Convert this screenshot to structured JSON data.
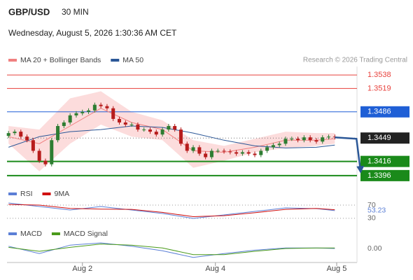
{
  "header": {
    "symbol": "GBP/USD",
    "timeframe": "30 MIN",
    "datetime": "Wednesday, August 5, 2026 1:30:36 AM CET",
    "source": "Research © 2026 Trading Central"
  },
  "chart_data": [
    {
      "type": "candlestick",
      "xlim": [
        -0.25,
        56.6
      ],
      "ylim": [
        1.3385,
        1.355
      ],
      "xticks": [
        {
          "value": 12,
          "label": "Aug 2"
        },
        {
          "value": 33.6,
          "label": "Aug 4"
        },
        {
          "value": 53.3,
          "label": "Aug 5"
        }
      ],
      "up_color": "#2e7d32",
      "down_color": "#b71c1c",
      "open": [
        1.3452,
        1.3456,
        1.3458,
        1.3451,
        1.3446,
        1.3431,
        1.3417,
        1.3412,
        1.3446,
        1.3466,
        1.3471,
        1.3481,
        1.3484,
        1.3486,
        1.3488,
        1.3496,
        1.3494,
        1.3491,
        1.3476,
        1.3471,
        1.3468,
        1.3468,
        1.3461,
        1.3461,
        1.3458,
        1.3454,
        1.3461,
        1.3466,
        1.3461,
        1.3441,
        1.3431,
        1.3436,
        1.3427,
        1.3422,
        1.3431,
        1.3431,
        1.343,
        1.3429,
        1.3427,
        1.3429,
        1.3427,
        1.3425,
        1.3431,
        1.3436,
        1.3439,
        1.3441,
        1.3448,
        1.3448,
        1.3446,
        1.345,
        1.3446,
        1.3444,
        1.345,
        1.3451
      ],
      "high": [
        1.3459,
        1.3461,
        1.3461,
        1.3454,
        1.3449,
        1.3434,
        1.342,
        1.3449,
        1.3469,
        1.3474,
        1.3484,
        1.3487,
        1.3489,
        1.3491,
        1.3499,
        1.3499,
        1.3497,
        1.3494,
        1.3479,
        1.3474,
        1.3471,
        1.3471,
        1.3464,
        1.3464,
        1.3461,
        1.3464,
        1.3469,
        1.3469,
        1.3464,
        1.3444,
        1.3439,
        1.3439,
        1.343,
        1.3434,
        1.3434,
        1.3434,
        1.3433,
        1.3432,
        1.3432,
        1.3432,
        1.343,
        1.3434,
        1.3439,
        1.3442,
        1.3444,
        1.3451,
        1.3451,
        1.3451,
        1.3453,
        1.3453,
        1.3449,
        1.3453,
        1.3454,
        1.3454
      ],
      "low": [
        1.3449,
        1.3453,
        1.3448,
        1.3443,
        1.3428,
        1.3414,
        1.3409,
        1.3409,
        1.3443,
        1.3463,
        1.3468,
        1.3478,
        1.3481,
        1.3483,
        1.3485,
        1.3491,
        1.3488,
        1.3473,
        1.3468,
        1.3465,
        1.3465,
        1.3458,
        1.3458,
        1.3455,
        1.3451,
        1.3451,
        1.3458,
        1.3458,
        1.3438,
        1.3428,
        1.3428,
        1.3424,
        1.3419,
        1.3419,
        1.3428,
        1.3427,
        1.3426,
        1.3424,
        1.3424,
        1.3424,
        1.3422,
        1.3422,
        1.3428,
        1.3433,
        1.3436,
        1.3438,
        1.3445,
        1.3443,
        1.3443,
        1.3443,
        1.3441,
        1.3441,
        1.3447,
        1.3447
      ],
      "close": [
        1.3456,
        1.3458,
        1.3451,
        1.3446,
        1.3431,
        1.3417,
        1.3412,
        1.3446,
        1.3466,
        1.3471,
        1.3481,
        1.3484,
        1.3486,
        1.3488,
        1.3496,
        1.3494,
        1.3491,
        1.3476,
        1.3471,
        1.3468,
        1.3468,
        1.3461,
        1.3461,
        1.3458,
        1.3454,
        1.3461,
        1.3466,
        1.3461,
        1.3441,
        1.3431,
        1.3436,
        1.3427,
        1.3422,
        1.3431,
        1.3431,
        1.343,
        1.3429,
        1.3427,
        1.3429,
        1.3427,
        1.3425,
        1.3431,
        1.3436,
        1.3439,
        1.3441,
        1.3448,
        1.3448,
        1.3446,
        1.345,
        1.3446,
        1.3444,
        1.345,
        1.3451,
        1.345
      ],
      "legend": [
        {
          "name": "MA 20 + Bollinger Bands",
          "color": "#f08080"
        },
        {
          "name": "MA 50",
          "color": "#2b5797"
        }
      ],
      "bands": {
        "color": "#fbd3d3",
        "x": [
          0,
          5,
          10,
          15,
          20,
          25,
          30,
          35,
          40,
          45,
          50,
          53
        ],
        "upper": [
          1.3466,
          1.3461,
          1.3505,
          1.3515,
          1.3486,
          1.3474,
          1.3446,
          1.3438,
          1.3448,
          1.3458,
          1.3456,
          1.3456
        ],
        "lower": [
          1.3441,
          1.3402,
          1.3441,
          1.3468,
          1.3451,
          1.3446,
          1.3407,
          1.3417,
          1.3429,
          1.3435,
          1.3438,
          1.3441
        ]
      },
      "series": [
        {
          "name": "MA 20",
          "color": "#f08080",
          "x": [
            0,
            5,
            10,
            15,
            20,
            25,
            30,
            35,
            40,
            45,
            50,
            53
          ],
          "values": [
            1.3451,
            1.3441,
            1.3466,
            1.3491,
            1.3471,
            1.3461,
            1.3431,
            1.3429,
            1.3436,
            1.3446,
            1.3446,
            1.3448
          ]
        },
        {
          "name": "MA 50",
          "color": "#2b5797",
          "x": [
            0,
            5,
            10,
            15,
            20,
            25,
            30,
            35,
            40,
            45,
            50,
            53
          ],
          "values": [
            1.3436,
            1.3451,
            1.3458,
            1.3461,
            1.3466,
            1.3464,
            1.3456,
            1.3446,
            1.3438,
            1.3435,
            1.3436,
            1.3439
          ]
        }
      ],
      "levels": [
        {
          "value": 1.3538,
          "color": "#e8413c",
          "boxed": false,
          "width": 1,
          "dotted": false
        },
        {
          "value": 1.3519,
          "color": "#e8413c",
          "boxed": false,
          "width": 1,
          "dotted": false
        },
        {
          "value": 1.3486,
          "color": "#1f5fd6",
          "boxed": true,
          "width": 1,
          "dotted": false
        },
        {
          "value": 1.3449,
          "color": "#222222",
          "boxed": true,
          "width": 1,
          "dotted": true
        },
        {
          "value": 1.3416,
          "color": "#1a8a1a",
          "boxed": true,
          "width": 2,
          "dotted": false
        },
        {
          "value": 1.3396,
          "color": "#1a8a1a",
          "boxed": true,
          "width": 2,
          "dotted": false
        }
      ],
      "arrow": {
        "color": "#2b5797",
        "from": [
          53,
          1.345
        ],
        "to": [
          57.2,
          1.3401
        ]
      }
    },
    {
      "type": "line",
      "ylim": [
        17,
        87
      ],
      "yticks": [
        70,
        30
      ],
      "grid": true,
      "x": [
        0,
        5,
        10,
        15,
        20,
        25,
        30,
        35,
        40,
        45,
        50,
        53
      ],
      "series": [
        {
          "name": "RSI",
          "color": "#5b7fd6",
          "values": [
            76.4,
            65.8,
            55.2,
            65.8,
            55.2,
            44.6,
            29.7,
            40.3,
            50.9,
            61.5,
            59.4,
            53.23
          ]
        },
        {
          "name": "9MA",
          "color": "#d01010",
          "values": [
            72,
            70,
            60,
            58,
            57,
            48,
            35,
            38,
            47,
            57,
            60,
            56
          ]
        }
      ],
      "last_value_series": 0
    },
    {
      "type": "line",
      "ylim": [
        -0.0025,
        0.0025
      ],
      "yticks": [
        {
          "value": 0,
          "label": "0.00"
        }
      ],
      "grid": false,
      "x": [
        0,
        5,
        10,
        15,
        20,
        25,
        30,
        35,
        40,
        45,
        50,
        53
      ],
      "series": [
        {
          "name": "MACD",
          "color": "#5b7fd6",
          "values": [
            0.0004,
            -0.0009,
            0.0006,
            0.001,
            0.0004,
            -0.0004,
            -0.0016,
            -0.0009,
            -0.0003,
            0.0001,
            0.0001,
            0
          ]
        },
        {
          "name": "MACD Signal",
          "color": "#4a9a1a",
          "values": [
            0.0002,
            -0.0005,
            0.0002,
            0.0008,
            0.0006,
            0.0001,
            -0.0011,
            -0.0011,
            -0.0005,
            0,
            0.0001,
            0.0001
          ]
        }
      ]
    }
  ]
}
